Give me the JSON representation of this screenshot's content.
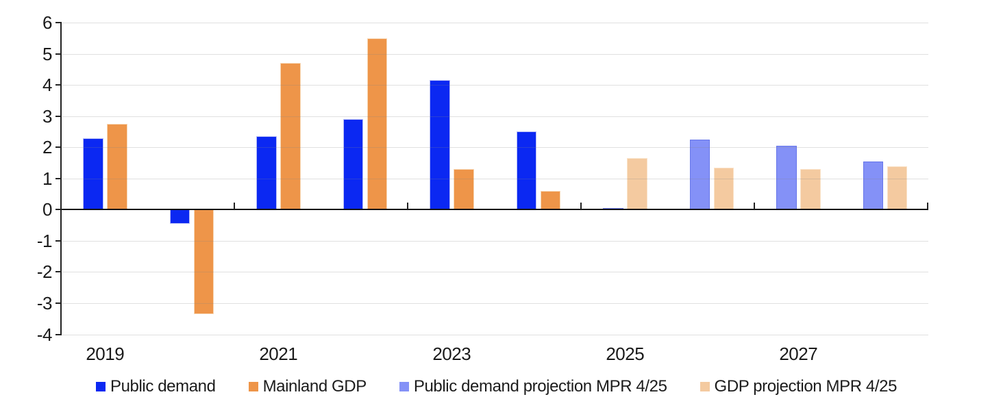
{
  "chart_data": {
    "type": "bar",
    "categories": [
      2019,
      2020,
      2021,
      2022,
      2023,
      2024,
      2025,
      2026,
      2027,
      2028
    ],
    "series": [
      {
        "name": "Public demand",
        "color": "#0b28f2",
        "border_color": "#b6bcf6",
        "values": [
          2.3,
          -0.45,
          2.35,
          2.9,
          4.15,
          2.5,
          null,
          null,
          null,
          null
        ]
      },
      {
        "name": "Mainland GDP",
        "color": "#ee9549",
        "border_color": "#f7d7b4",
        "values": [
          2.75,
          -3.35,
          4.7,
          5.5,
          1.3,
          0.6,
          null,
          null,
          null,
          null
        ]
      },
      {
        "name": "Public demand projection MPR 4/25",
        "color": "#8491f7",
        "border_color": "#6676ea",
        "values": [
          null,
          null,
          null,
          null,
          null,
          null,
          0.05,
          2.25,
          2.05,
          1.55
        ]
      },
      {
        "name": "GDP projection MPR 4/25",
        "color": "#f4caa0",
        "border_color": "#fae3c9",
        "values": [
          null,
          null,
          null,
          null,
          null,
          null,
          1.65,
          1.35,
          1.3,
          1.4
        ]
      }
    ],
    "title": "",
    "xlabel": "",
    "ylabel": "",
    "ylim": [
      -4,
      6
    ],
    "y_ticks": [
      6,
      5,
      4,
      3,
      2,
      1,
      0,
      -1,
      -2,
      -3,
      -4
    ],
    "x_tick_labels": [
      "2019",
      "2021",
      "2023",
      "2025",
      "2027"
    ],
    "grid": true,
    "legend_position": "bottom"
  },
  "style": {
    "grid_color": "#dcdcdc",
    "axis_color": "#222222",
    "zero_line_color": "#111111",
    "text_color": "#1a1a1a"
  }
}
